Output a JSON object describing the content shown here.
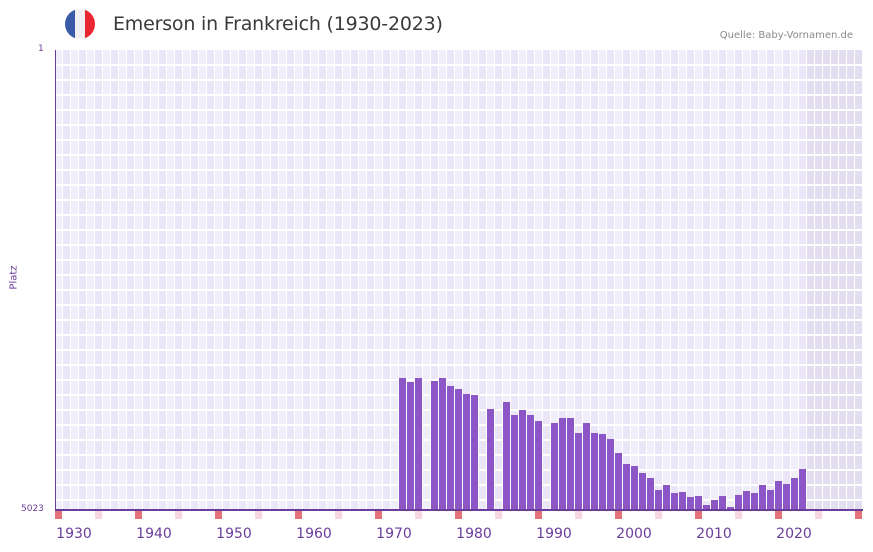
{
  "header": {
    "title": "Emerson in Frankreich (1930-2023)",
    "source": "Quelle: Baby-Vornamen.de",
    "flag_colors": [
      "#3a5aa8",
      "#f0f0f4",
      "#e8262f"
    ]
  },
  "axes": {
    "y_top_label": "1",
    "y_bottom_label": "5023",
    "y_title": "Platz",
    "x_ticks": [
      "1930",
      "1940",
      "1950",
      "1960",
      "1970",
      "1980",
      "1990",
      "2000",
      "2010",
      "2020"
    ]
  },
  "colors": {
    "bar": "#8c56c7",
    "axis": "#6a3d9a",
    "grid_bg_a": "#f1eefb",
    "grid_bg_b": "#ebe6f7",
    "future_bg": "#e2def0",
    "decade_marker": "#e5717a",
    "half_decade_marker": "#f6d6e0"
  },
  "chart_data": {
    "type": "bar",
    "title": "Emerson in Frankreich (1930-2023)",
    "xlabel": "",
    "ylabel": "Platz",
    "y_inverted": true,
    "ylim": [
      5023,
      1
    ],
    "x_range": [
      1928,
      2028
    ],
    "grid": true,
    "legend": null,
    "source": "Quelle: Baby-Vornamen.de",
    "x": [
      1971,
      1972,
      1973,
      1975,
      1976,
      1977,
      1978,
      1979,
      1980,
      1982,
      1984,
      1985,
      1986,
      1987,
      1988,
      1990,
      1991,
      1992,
      1993,
      1994,
      1995,
      1996,
      1997,
      1998,
      1999,
      2000,
      2001,
      2002,
      2003,
      2004,
      2005,
      2006,
      2007,
      2008,
      2009,
      2010,
      2011,
      2012,
      2013,
      2014,
      2015,
      2016,
      2017,
      2018,
      2019,
      2020,
      2021
    ],
    "values": [
      3582,
      3626,
      3582,
      3615,
      3582,
      3670,
      3703,
      3757,
      3768,
      3921,
      3845,
      3987,
      3932,
      3987,
      4052,
      4074,
      4020,
      4020,
      4183,
      4074,
      4183,
      4194,
      4249,
      4402,
      4522,
      4544,
      4620,
      4675,
      4806,
      4751,
      4839,
      4828,
      4883,
      4872,
      4970,
      4915,
      4872,
      4992,
      4861,
      4817,
      4839,
      4751,
      4806,
      4708,
      4741,
      4675,
      4577
    ]
  }
}
